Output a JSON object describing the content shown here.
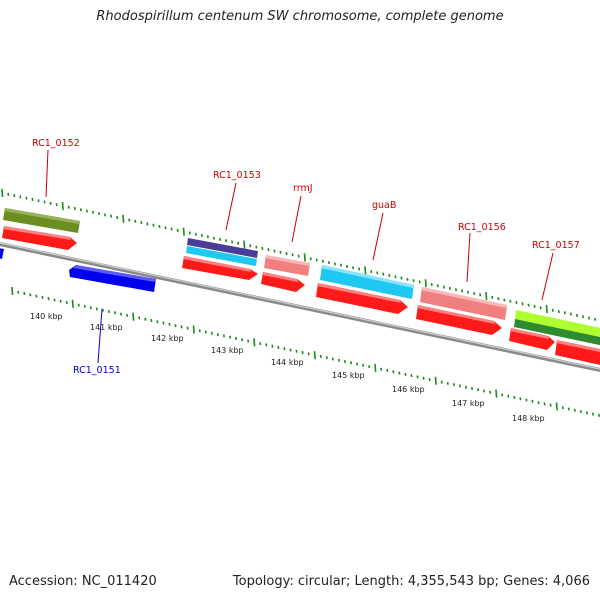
{
  "title": "Rhodospirillum centenum SW chromosome, complete genome",
  "footer": {
    "accession": "Accession: NC_011420",
    "summary": "Topology: circular; Length: 4,355,543 bp; Genes: 4,066"
  },
  "gene_labels": [
    {
      "id": "rc1-0151",
      "text": "RC1_0151",
      "color": "#0000cc"
    },
    {
      "id": "rc1-0152",
      "text": "RC1_0152",
      "color": "#cc0000"
    },
    {
      "id": "rc1-0153",
      "text": "RC1_0153",
      "color": "#cc0000"
    },
    {
      "id": "rrmj",
      "text": "rrmJ",
      "color": "#cc0000"
    },
    {
      "id": "guab",
      "text": "guaB",
      "color": "#cc0000"
    },
    {
      "id": "rc1-0156",
      "text": "RC1_0156",
      "color": "#cc0000"
    },
    {
      "id": "rc1-0157",
      "text": "RC1_0157",
      "color": "#cc0000"
    }
  ],
  "scale_labels": [
    "140 kbp",
    "141 kbp",
    "142 kbp",
    "143 kbp",
    "144 kbp",
    "145 kbp",
    "146 kbp",
    "147 kbp",
    "148 kbp"
  ],
  "colors": {
    "cds": "#ff1a1a",
    "cds_pink": "#f08080",
    "cds_blue": "#0000ee",
    "cds_cyan": "#1ec8f0",
    "cds_indigo": "#4b3c9a",
    "olive": "#6b8e23",
    "lime": "#adff2f",
    "green_dark": "#2e8b2e",
    "backbone": "#808080",
    "tick": "#1a8a1a"
  }
}
